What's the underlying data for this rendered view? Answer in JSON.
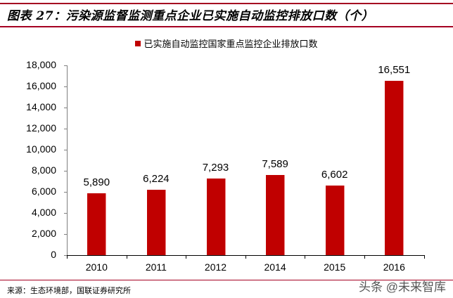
{
  "header": {
    "title": "图表 27：污染源监督监测重点企业已实施自动监控排放口数（个）"
  },
  "footer": {
    "source": "来源：生态环境部，国联证券研究所",
    "watermark": "头条 @未来智库"
  },
  "colors": {
    "bar": "#c00000",
    "rule": "#a50021"
  },
  "chart_data": {
    "type": "bar",
    "title": "污染源监督监测重点企业已实施自动监控排放口数（个）",
    "categories": [
      "2010",
      "2011",
      "2012",
      "2014",
      "2015",
      "2016"
    ],
    "series": [
      {
        "name": "已实施自动监控国家重点监控企业排放口数",
        "values": [
          5890,
          6224,
          7293,
          7589,
          6602,
          16551
        ]
      }
    ],
    "value_labels": [
      "5,890",
      "6,224",
      "7,293",
      "7,589",
      "6,602",
      "16,551"
    ],
    "xlabel": "",
    "ylabel": "",
    "ylim": [
      0,
      18000
    ],
    "yticks": [
      "0",
      "2,000",
      "4,000",
      "6,000",
      "8,000",
      "10,000",
      "12,000",
      "14,000",
      "16,000",
      "18,000"
    ],
    "grid": false,
    "legend_position": "top"
  }
}
